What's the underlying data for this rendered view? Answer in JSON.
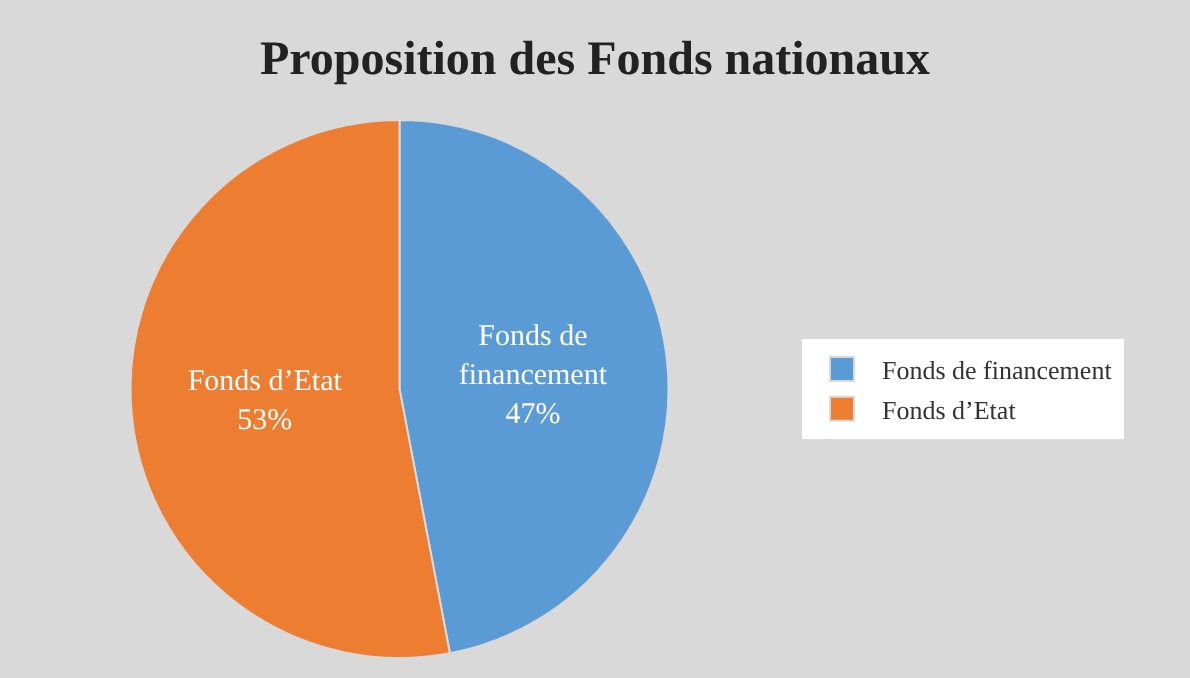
{
  "chart_data": {
    "type": "pie",
    "title": "Proposition des Fonds nationaux",
    "categories": [
      "Fonds de financement",
      "Fonds d’Etat"
    ],
    "values": [
      47,
      53
    ],
    "colors": [
      "#5b9bd5",
      "#ed7d31"
    ],
    "value_labels": [
      "47%",
      "53%"
    ],
    "legend": "right"
  }
}
